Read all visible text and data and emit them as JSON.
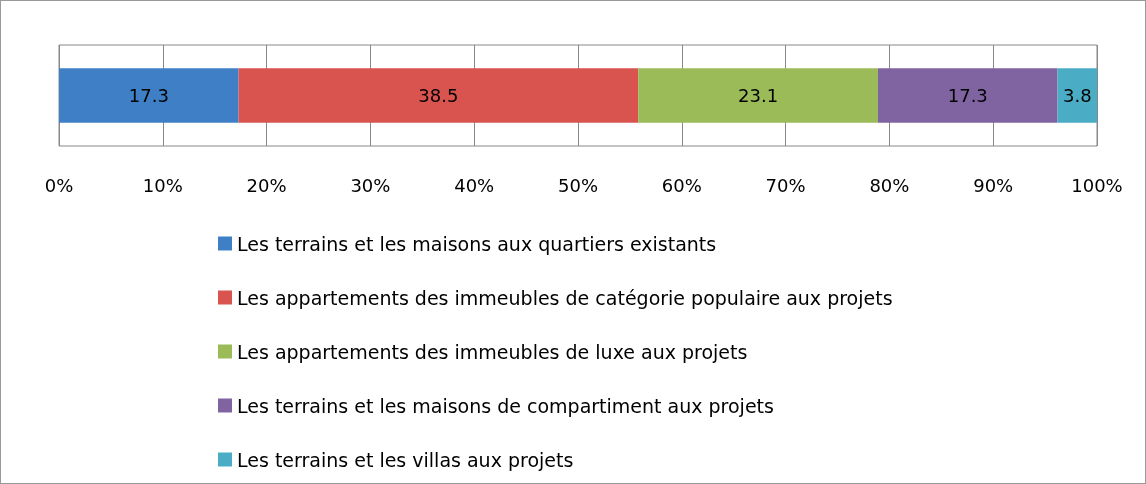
{
  "chart_data": {
    "type": "bar",
    "orientation": "horizontal",
    "stacked": true,
    "categories": [
      null
    ],
    "series": [
      {
        "name": "Les terrains et les maisons aux quartiers existants",
        "color": "#3f7fc6",
        "values": [
          17.3
        ]
      },
      {
        "name": "Les appartements des immeubles de catégorie populaire aux projets",
        "color": "#d9534f",
        "values": [
          38.5
        ]
      },
      {
        "name": "Les appartements des immeubles de luxe aux projets",
        "color": "#9bbb59",
        "values": [
          23.1
        ]
      },
      {
        "name": "Les terrains et les maisons de compartiment aux projets",
        "color": "#8064a2",
        "values": [
          17.3
        ]
      },
      {
        "name": "Les terrains et les villas aux projets",
        "color": "#4bacc6",
        "values": [
          3.8
        ]
      }
    ],
    "xlim": [
      0,
      100
    ],
    "xticks": [
      {
        "value": 0,
        "label": "0%"
      },
      {
        "value": 10,
        "label": "10%"
      },
      {
        "value": 20,
        "label": "20%"
      },
      {
        "value": 30,
        "label": "30%"
      },
      {
        "value": 40,
        "label": "40%"
      },
      {
        "value": 50,
        "label": "50%"
      },
      {
        "value": 60,
        "label": "60%"
      },
      {
        "value": 70,
        "label": "70%"
      },
      {
        "value": 80,
        "label": "80%"
      },
      {
        "value": 90,
        "label": "90%"
      },
      {
        "value": 100,
        "label": "100%"
      }
    ],
    "data_labels": true,
    "grid": "x",
    "legend": "bottom"
  }
}
